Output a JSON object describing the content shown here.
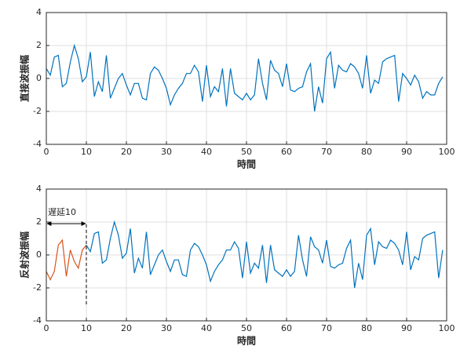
{
  "chart_data": [
    {
      "type": "line",
      "ylabel": "直接波振幅",
      "xlabel": "時間",
      "xlim": [
        0,
        100
      ],
      "xticks": [
        0,
        10,
        20,
        30,
        40,
        50,
        60,
        70,
        80,
        90,
        100
      ],
      "ylim": [
        -4,
        4
      ],
      "yticks": [
        -4,
        -2,
        0,
        2,
        4
      ],
      "grid": true,
      "series": [
        {
          "color": "#0072BD",
          "x": [
            0,
            1,
            2,
            3,
            4,
            5,
            6,
            7,
            8,
            9,
            10,
            11,
            12,
            13,
            14,
            15,
            16,
            17,
            18,
            19,
            20,
            21,
            22,
            23,
            24,
            25,
            26,
            27,
            28,
            29,
            30,
            31,
            32,
            33,
            34,
            35,
            36,
            37,
            38,
            39,
            40,
            41,
            42,
            43,
            44,
            45,
            46,
            47,
            48,
            49,
            50,
            51,
            52,
            53,
            54,
            55,
            56,
            57,
            58,
            59,
            60,
            61,
            62,
            63,
            64,
            65,
            66,
            67,
            68,
            69,
            70,
            71,
            72,
            73,
            74,
            75,
            76,
            77,
            78,
            79,
            80,
            81,
            82,
            83,
            84,
            85,
            86,
            87,
            88,
            89,
            90,
            91,
            92,
            93,
            94,
            95,
            96,
            97,
            98,
            99
          ],
          "values": [
            0.6,
            0.2,
            1.3,
            1.4,
            -0.5,
            -0.3,
            1.0,
            2.0,
            1.2,
            -0.2,
            0.1,
            1.6,
            -1.1,
            -0.2,
            -0.8,
            1.4,
            -1.2,
            -0.6,
            0.0,
            0.3,
            -0.4,
            -1.0,
            -0.3,
            -0.3,
            -1.2,
            -1.3,
            0.3,
            0.7,
            0.5,
            0.0,
            -0.6,
            -1.6,
            -1.0,
            -0.6,
            -0.3,
            0.3,
            0.3,
            0.8,
            0.4,
            -1.4,
            0.8,
            -1.1,
            -0.5,
            -0.8,
            0.6,
            -1.7,
            0.6,
            -0.9,
            -1.1,
            -1.3,
            -0.9,
            -1.3,
            -1.0,
            1.2,
            -0.3,
            -1.3,
            1.1,
            0.5,
            0.3,
            -0.5,
            0.9,
            -0.7,
            -0.8,
            -0.6,
            -0.5,
            0.4,
            0.9,
            -2.0,
            -0.5,
            -1.5,
            1.2,
            1.6,
            -0.6,
            0.8,
            0.5,
            0.4,
            0.9,
            0.7,
            0.3,
            -0.6,
            1.4,
            -0.9,
            -0.1,
            -0.3,
            1.0,
            1.2,
            1.3,
            1.4,
            -1.4,
            0.3,
            0.0,
            -0.4,
            0.2,
            -0.2,
            -1.2,
            -0.8,
            -1.0,
            -1.0,
            -0.3,
            0.1
          ]
        }
      ]
    },
    {
      "type": "line",
      "ylabel": "反射波振幅",
      "xlabel": "時間",
      "xlim": [
        0,
        100
      ],
      "xticks": [
        0,
        10,
        20,
        30,
        40,
        50,
        60,
        70,
        80,
        90,
        100
      ],
      "ylim": [
        -4,
        4
      ],
      "yticks": [
        -4,
        -2,
        0,
        2,
        4
      ],
      "grid": true,
      "series": [
        {
          "color": "#D95319",
          "x": [
            0,
            1,
            2,
            3,
            4,
            5,
            6,
            7,
            8,
            9,
            10
          ],
          "values": [
            -1.0,
            -1.5,
            -1.0,
            0.6,
            0.9,
            -1.3,
            0.3,
            -0.4,
            -0.8,
            0.3,
            0.6
          ]
        },
        {
          "color": "#0072BD",
          "x": [
            10,
            11,
            12,
            13,
            14,
            15,
            16,
            17,
            18,
            19,
            20,
            21,
            22,
            23,
            24,
            25,
            26,
            27,
            28,
            29,
            30,
            31,
            32,
            33,
            34,
            35,
            36,
            37,
            38,
            39,
            40,
            41,
            42,
            43,
            44,
            45,
            46,
            47,
            48,
            49,
            50,
            51,
            52,
            53,
            54,
            55,
            56,
            57,
            58,
            59,
            60,
            61,
            62,
            63,
            64,
            65,
            66,
            67,
            68,
            69,
            70,
            71,
            72,
            73,
            74,
            75,
            76,
            77,
            78,
            79,
            80,
            81,
            82,
            83,
            84,
            85,
            86,
            87,
            88,
            89,
            90,
            91,
            92,
            93,
            94,
            95,
            96,
            97,
            98,
            99
          ],
          "values": [
            0.6,
            0.2,
            1.3,
            1.4,
            -0.5,
            -0.3,
            1.0,
            2.0,
            1.2,
            -0.2,
            0.1,
            1.6,
            -1.1,
            -0.2,
            -0.8,
            1.4,
            -1.2,
            -0.6,
            0.0,
            0.3,
            -0.4,
            -1.0,
            -0.3,
            -0.3,
            -1.2,
            -1.3,
            0.3,
            0.7,
            0.5,
            0.0,
            -0.6,
            -1.6,
            -1.0,
            -0.6,
            -0.3,
            0.3,
            0.3,
            0.8,
            0.4,
            -1.4,
            0.8,
            -1.1,
            -0.5,
            -0.8,
            0.6,
            -1.7,
            0.6,
            -0.9,
            -1.1,
            -1.3,
            -0.9,
            -1.3,
            -1.0,
            1.2,
            -0.3,
            -1.3,
            1.1,
            0.5,
            0.3,
            -0.5,
            0.9,
            -0.7,
            -0.8,
            -0.6,
            -0.5,
            0.4,
            0.9,
            -2.0,
            -0.5,
            -1.5,
            1.2,
            1.6,
            -0.6,
            0.8,
            0.5,
            0.4,
            0.9,
            0.7,
            0.3,
            -0.6,
            1.4,
            -0.9,
            -0.1,
            -0.3,
            1.0,
            1.2,
            1.3,
            1.4,
            -1.4,
            0.3
          ]
        }
      ],
      "annotation": {
        "text": "遅延10",
        "x": [
          0,
          10
        ],
        "y": 1.9,
        "line_x": 10,
        "line_y": [
          -3,
          1.9
        ]
      }
    }
  ]
}
